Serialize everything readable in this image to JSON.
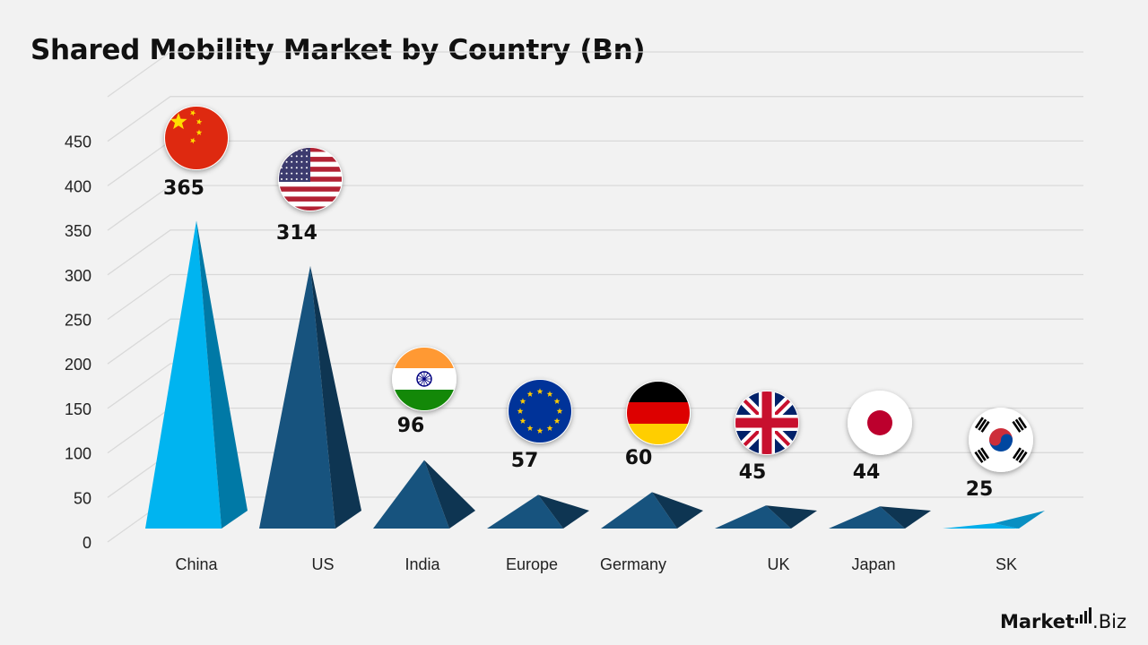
{
  "title": "Shared Mobility Market by Country (Bn)",
  "brand": {
    "name_bold": "Market",
    "name_rest": ".Biz"
  },
  "chart_data": {
    "type": "bar",
    "title": "Shared Mobility Market by Country (Bn)",
    "categories": [
      "China",
      "US",
      "India",
      "Europe",
      "Germany",
      "UK",
      "Japan",
      "SK"
    ],
    "values": [
      365,
      314,
      96,
      57,
      60,
      45,
      44,
      25
    ],
    "value_labels": [
      "365",
      "314",
      "96",
      "57",
      "60",
      "45",
      "44",
      "25"
    ],
    "flag_icons": [
      "china-flag-icon",
      "us-flag-icon",
      "india-flag-icon",
      "eu-flag-icon",
      "germany-flag-icon",
      "uk-flag-icon",
      "japan-flag-icon",
      "south-korea-flag-icon"
    ],
    "ylim": [
      0,
      450
    ],
    "yticks": [
      0,
      50,
      100,
      150,
      200,
      250,
      300,
      350,
      400,
      450
    ],
    "ytick_labels": [
      "0",
      "50",
      "100",
      "150",
      "200",
      "250",
      "300",
      "350",
      "400",
      "450"
    ],
    "xlabel": "",
    "ylabel": "",
    "grid": true,
    "legend": "none",
    "colors": {
      "china": "#00b4f0",
      "sk": "#00aeea",
      "dark": "#17537e",
      "grid": "#d9d9d9",
      "axis_text": "#222222"
    }
  }
}
